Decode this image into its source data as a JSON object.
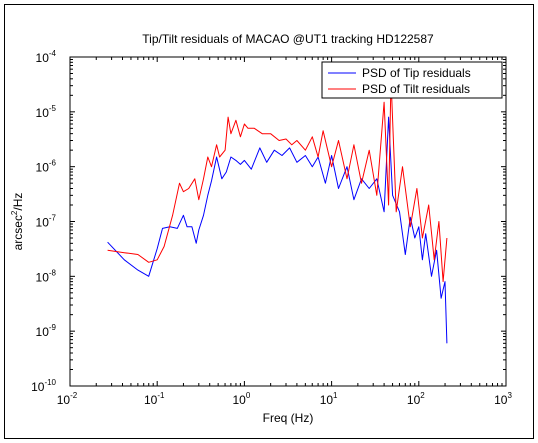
{
  "chart_data": {
    "type": "line",
    "title": "Tip/Tilt residuals of MACAO @UT1 tracking HD122587",
    "xlabel": "Freq (Hz)",
    "ylabel_base": "arcsec",
    "ylabel_exp": "2",
    "ylabel_tail": "/Hz",
    "x_scale": "log",
    "y_scale": "log",
    "xlim": [
      0.01,
      1000
    ],
    "ylim": [
      1e-10,
      0.0001
    ],
    "x_ticks": [
      {
        "value": 0.01,
        "base": "10",
        "exp": "-2"
      },
      {
        "value": 0.1,
        "base": "10",
        "exp": "-1"
      },
      {
        "value": 1,
        "base": "10",
        "exp": "0"
      },
      {
        "value": 10,
        "base": "10",
        "exp": "1"
      },
      {
        "value": 100,
        "base": "10",
        "exp": "2"
      },
      {
        "value": 1000,
        "base": "10",
        "exp": "3"
      }
    ],
    "y_ticks": [
      {
        "value": 1e-10,
        "base": "10",
        "exp": "-10"
      },
      {
        "value": 1e-09,
        "base": "10",
        "exp": "-9"
      },
      {
        "value": 1e-08,
        "base": "10",
        "exp": "-8"
      },
      {
        "value": 1e-07,
        "base": "10",
        "exp": "-7"
      },
      {
        "value": 1e-06,
        "base": "10",
        "exp": "-6"
      },
      {
        "value": 1e-05,
        "base": "10",
        "exp": "-5"
      },
      {
        "value": 0.0001,
        "base": "10",
        "exp": "-4"
      }
    ],
    "grid": false,
    "legend_position": "top-right",
    "series": [
      {
        "name": "PSD of Tip residuals",
        "color": "#0000ff",
        "x": [
          0.027,
          0.042,
          0.06,
          0.08,
          0.1,
          0.115,
          0.14,
          0.17,
          0.2,
          0.22,
          0.25,
          0.28,
          0.3,
          0.34,
          0.38,
          0.42,
          0.48,
          0.55,
          0.62,
          0.7,
          0.8,
          0.9,
          1.0,
          1.2,
          1.5,
          1.8,
          2.2,
          2.7,
          3.3,
          4.0,
          5.0,
          6.0,
          7.0,
          8.5,
          10,
          12,
          15,
          18,
          22,
          27,
          33,
          40,
          45,
          50,
          60,
          70,
          80,
          90,
          100,
          110,
          120,
          140,
          160,
          180,
          200,
          210
        ],
        "y": [
          4.2e-08,
          2e-08,
          1.3e-08,
          1e-08,
          3.2e-08,
          7.5e-08,
          8e-08,
          7.5e-08,
          1.3e-07,
          8e-08,
          8e-08,
          4e-08,
          7e-08,
          1.3e-07,
          3e-07,
          5.5e-07,
          1.5e-06,
          6e-07,
          8e-07,
          1.5e-06,
          1.3e-06,
          1.1e-06,
          1.3e-06,
          9e-07,
          2.2e-06,
          1.2e-06,
          2e-06,
          1.6e-06,
          2.2e-06,
          1.2e-06,
          1.6e-06,
          1e-06,
          1.5e-06,
          5e-07,
          1.6e-06,
          4e-07,
          1e-06,
          2.5e-07,
          6e-07,
          4e-07,
          6e-07,
          1.5e-07,
          8e-06,
          3e-07,
          1.5e-07,
          2.5e-08,
          1.2e-07,
          5e-08,
          8e-08,
          2e-08,
          6e-08,
          1e-08,
          3e-08,
          4e-09,
          8e-09,
          6e-10
        ]
      },
      {
        "name": "PSD of Tilt residuals",
        "color": "#ff0000",
        "x": [
          0.027,
          0.042,
          0.06,
          0.08,
          0.1,
          0.12,
          0.15,
          0.18,
          0.2,
          0.23,
          0.27,
          0.3,
          0.34,
          0.38,
          0.42,
          0.48,
          0.52,
          0.6,
          0.65,
          0.7,
          0.8,
          0.9,
          1.0,
          1.1,
          1.3,
          1.6,
          2.0,
          2.5,
          3.0,
          3.5,
          4.0,
          5.0,
          6.0,
          7.0,
          8.0,
          10,
          12,
          15,
          18,
          22,
          27,
          33,
          40,
          45,
          48,
          55,
          65,
          80,
          95,
          110,
          130,
          150,
          170,
          190,
          210
        ],
        "y": [
          3e-08,
          2.7e-08,
          2.5e-08,
          1.8e-08,
          2e-08,
          3.5e-08,
          1.3e-07,
          5e-07,
          3.5e-07,
          4e-07,
          6e-07,
          2.5e-07,
          6e-07,
          1.5e-06,
          1e-06,
          2.5e-06,
          1.5e-06,
          2e-06,
          8e-06,
          4e-06,
          7e-06,
          3.5e-06,
          6e-06,
          5e-06,
          5e-06,
          4e-06,
          4e-06,
          3e-06,
          3.2e-06,
          2.5e-06,
          3e-06,
          2e-06,
          3.5e-06,
          1.5e-06,
          4.5e-06,
          1e-06,
          3e-06,
          6e-07,
          2.5e-06,
          5e-07,
          2e-06,
          3e-07,
          1.5e-05,
          2e-07,
          4e-05,
          1.5e-07,
          1e-06,
          8e-08,
          4e-07,
          5e-08,
          2e-07,
          2e-08,
          1e-07,
          8e-09,
          5e-08
        ]
      }
    ]
  }
}
